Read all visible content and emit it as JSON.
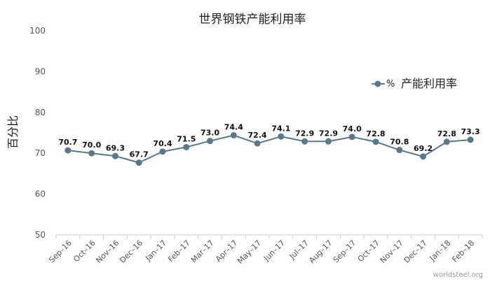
{
  "chart_data": {
    "type": "line",
    "title": "世界钢铁产能利用率",
    "ylabel": "百分比",
    "xlabel": "",
    "ylim": [
      50,
      100
    ],
    "yticks": [
      50,
      60,
      70,
      80,
      90,
      100
    ],
    "categories": [
      "Sep–16",
      "Oct–16",
      "Nov–16",
      "Dec–16",
      "Jan–17",
      "Feb–17",
      "Mar–17",
      "Apr–17",
      "May–17",
      "Jun–17",
      "Jul–17",
      "Aug–17",
      "Sep–17",
      "Oct–17",
      "Nov–17",
      "Dec–17",
      "Jan–18",
      "Feb–18"
    ],
    "series": [
      {
        "name": "产能利用率",
        "unit": "%",
        "color": "#57798b",
        "values": [
          70.7,
          70.0,
          69.3,
          67.7,
          70.4,
          71.5,
          73.0,
          74.4,
          72.4,
          74.1,
          72.9,
          72.9,
          74.0,
          72.8,
          70.8,
          69.2,
          72.8,
          73.3
        ],
        "labels": [
          "70.7",
          "70.0",
          "69.3",
          "67.7",
          "70.4",
          "71.5",
          "73.0",
          "74.4",
          "72.4",
          "74.1",
          "72.9",
          "72.9",
          "74.0",
          "72.8",
          "70.8",
          "69.2",
          "72.8",
          "73.3"
        ]
      }
    ],
    "grid": false,
    "legend_position": "right"
  },
  "source": "worldsteel.org"
}
